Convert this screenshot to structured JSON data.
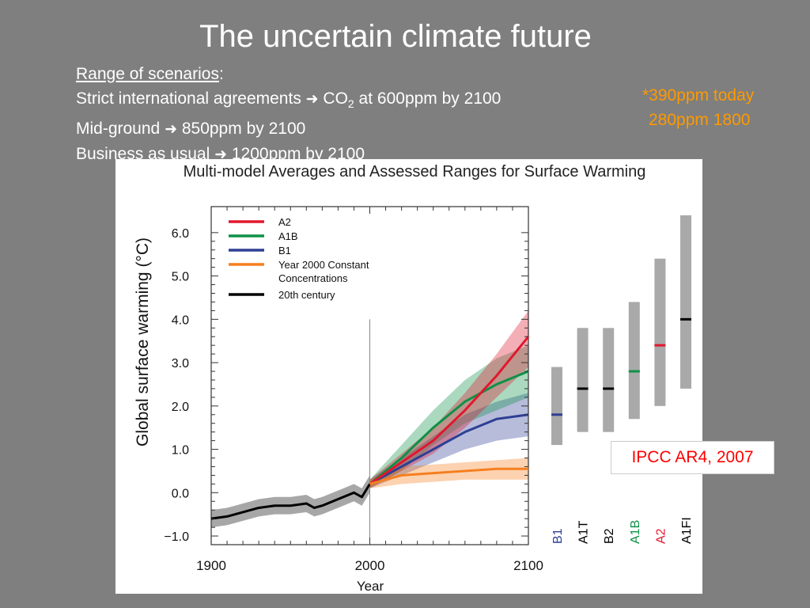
{
  "slide": {
    "title": "The uncertain climate future",
    "range_heading": "Range of scenarios",
    "line1_pre": "Strict international agreements",
    "line1_co": "CO",
    "line1_sub": "2",
    "line1_post": " at 600ppm by 2100",
    "line2_pre": "Mid-ground",
    "line2_post": "850ppm by 2100",
    "line3_pre": "Business as usual",
    "line3_post": "1200ppm by 2100",
    "note_today": "*390ppm today",
    "note_1800": "280ppm 1800",
    "citation": "IPCC AR4, 2007"
  },
  "chart_data": {
    "type": "line",
    "title": "Multi-model Averages and Assessed Ranges for Surface Warming",
    "xlabel": "Year",
    "ylabel": "Global surface warming (°C)",
    "xlim": [
      1900,
      2100
    ],
    "ylim": [
      -1.2,
      6.6
    ],
    "xticks": [
      1900,
      2000,
      2100
    ],
    "yticks": [
      -1.0,
      0.0,
      1.0,
      2.0,
      3.0,
      4.0,
      5.0,
      6.0
    ],
    "ytick_labels": [
      "−1.0",
      "0.0",
      "1.0",
      "2.0",
      "3.0",
      "4.0",
      "5.0",
      "6.0"
    ],
    "vertical_line_x": 2000,
    "legend_position": "top-left",
    "series": [
      {
        "name": "A2",
        "color": "#e0182e",
        "x": [
          2000,
          2020,
          2040,
          2060,
          2080,
          2100
        ],
        "values": [
          0.2,
          0.7,
          1.2,
          1.9,
          2.7,
          3.6
        ],
        "lower": [
          0.1,
          0.5,
          0.9,
          1.5,
          2.2,
          2.9
        ],
        "upper": [
          0.3,
          0.9,
          1.5,
          2.3,
          3.2,
          4.2
        ]
      },
      {
        "name": "A1B",
        "color": "#0e9147",
        "x": [
          2000,
          2020,
          2040,
          2060,
          2080,
          2100
        ],
        "values": [
          0.2,
          0.8,
          1.5,
          2.1,
          2.5,
          2.8
        ],
        "lower": [
          0.1,
          0.5,
          1.1,
          1.6,
          1.9,
          2.2
        ],
        "upper": [
          0.3,
          1.1,
          1.9,
          2.6,
          3.1,
          3.4
        ]
      },
      {
        "name": "B1",
        "color": "#2e3f94",
        "x": [
          2000,
          2020,
          2040,
          2060,
          2080,
          2100
        ],
        "values": [
          0.2,
          0.6,
          1.0,
          1.4,
          1.7,
          1.8
        ],
        "lower": [
          0.1,
          0.4,
          0.7,
          1.0,
          1.2,
          1.3
        ],
        "upper": [
          0.3,
          0.8,
          1.3,
          1.8,
          2.1,
          2.3
        ]
      },
      {
        "name": "Year 2000 Constant Concentrations",
        "color": "#f57f1f",
        "x": [
          2000,
          2020,
          2040,
          2060,
          2080,
          2100
        ],
        "values": [
          0.2,
          0.4,
          0.45,
          0.5,
          0.55,
          0.55
        ],
        "lower": [
          0.1,
          0.2,
          0.25,
          0.3,
          0.3,
          0.3
        ],
        "upper": [
          0.3,
          0.6,
          0.65,
          0.7,
          0.75,
          0.8
        ]
      },
      {
        "name": "20th century",
        "color": "#000000",
        "x": [
          1900,
          1910,
          1920,
          1930,
          1940,
          1950,
          1960,
          1965,
          1970,
          1980,
          1990,
          1995,
          2000
        ],
        "values": [
          -0.6,
          -0.55,
          -0.45,
          -0.35,
          -0.3,
          -0.3,
          -0.25,
          -0.35,
          -0.3,
          -0.15,
          0.0,
          -0.1,
          0.2
        ],
        "lower": [
          -0.8,
          -0.75,
          -0.65,
          -0.55,
          -0.5,
          -0.5,
          -0.45,
          -0.55,
          -0.5,
          -0.35,
          -0.2,
          -0.3,
          0.0
        ],
        "upper": [
          -0.4,
          -0.35,
          -0.25,
          -0.15,
          -0.1,
          -0.1,
          -0.05,
          -0.15,
          -0.1,
          0.05,
          0.2,
          0.1,
          0.4
        ]
      }
    ],
    "ranges": [
      {
        "label": "B1",
        "label_color": "#2e3f94",
        "mark_color": "#2e3f94",
        "low": 1.1,
        "high": 2.9,
        "best": 1.8
      },
      {
        "label": "A1T",
        "label_color": "#000000",
        "mark_color": "#000000",
        "low": 1.4,
        "high": 3.8,
        "best": 2.4
      },
      {
        "label": "B2",
        "label_color": "#000000",
        "mark_color": "#000000",
        "low": 1.4,
        "high": 3.8,
        "best": 2.4
      },
      {
        "label": "A1B",
        "label_color": "#0e9147",
        "mark_color": "#0e9147",
        "low": 1.7,
        "high": 4.4,
        "best": 2.8
      },
      {
        "label": "A2",
        "label_color": "#e0182e",
        "mark_color": "#e0182e",
        "low": 2.0,
        "high": 5.4,
        "best": 3.4
      },
      {
        "label": "A1FI",
        "label_color": "#000000",
        "mark_color": "#000000",
        "low": 2.4,
        "high": 6.4,
        "best": 4.0
      }
    ],
    "range_bar_color": "#a9a9a9"
  }
}
